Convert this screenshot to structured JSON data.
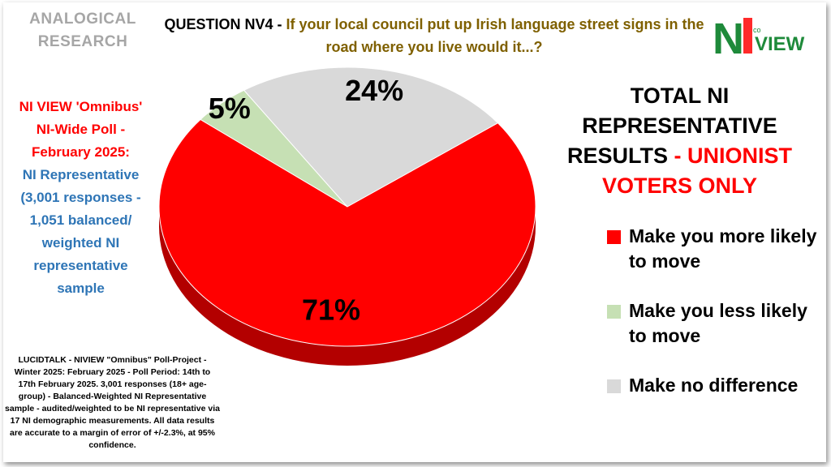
{
  "brand": {
    "line1": "ANALOGICAL",
    "line2": "RESEARCH"
  },
  "question": {
    "label": "QUESTION NV4 - ",
    "text": "If your local council put up Irish language street signs in the road where you live would it...?"
  },
  "logo": {
    "letters_n": "N",
    "letters_i": "I",
    "letters_view": "VIEW",
    "small": "co",
    "colors": {
      "n": "#1e8a3a",
      "i": "#ff2a2a",
      "view": "#1e8a3a"
    }
  },
  "sidebar": {
    "red_text": "NI VIEW 'Omnibus' NI-Wide Poll - February 2025:",
    "blue_text": "NI Representative (3,001 responses - 1,051 balanced/ weighted NI representative sample"
  },
  "footnote": "LUCIDTALK - NIVIEW \"Omnibus\" Poll-Project - Winter 2025: February 2025 - Poll Period: 14th to 17th February 2025. 3,001 responses (18+ age-group) - Balanced-Weighted NI Representative sample - audited/weighted to be NI representative via 17 NI demographic measurements. All data results are accurate to a margin of error of +/-2.3%, at 95% confidence.",
  "result_title": {
    "black": "TOTAL NI REPRESENTATIVE RESULTS",
    "red": "- UNIONIST VOTERS ONLY"
  },
  "chart_data": {
    "type": "pie",
    "slices": [
      {
        "label": "Make you more likely to move",
        "value": 71,
        "display": "71%",
        "color": "#ff0000",
        "side": "#b30000"
      },
      {
        "label": "Make you less likely to move",
        "value": 5,
        "display": "5%",
        "color": "#c6e0b4",
        "side": "#8fa882"
      },
      {
        "label": "Make no difference",
        "value": 24,
        "display": "24%",
        "color": "#d9d9d9",
        "side": "#9e9e9e"
      }
    ],
    "legend_placement": "right"
  }
}
